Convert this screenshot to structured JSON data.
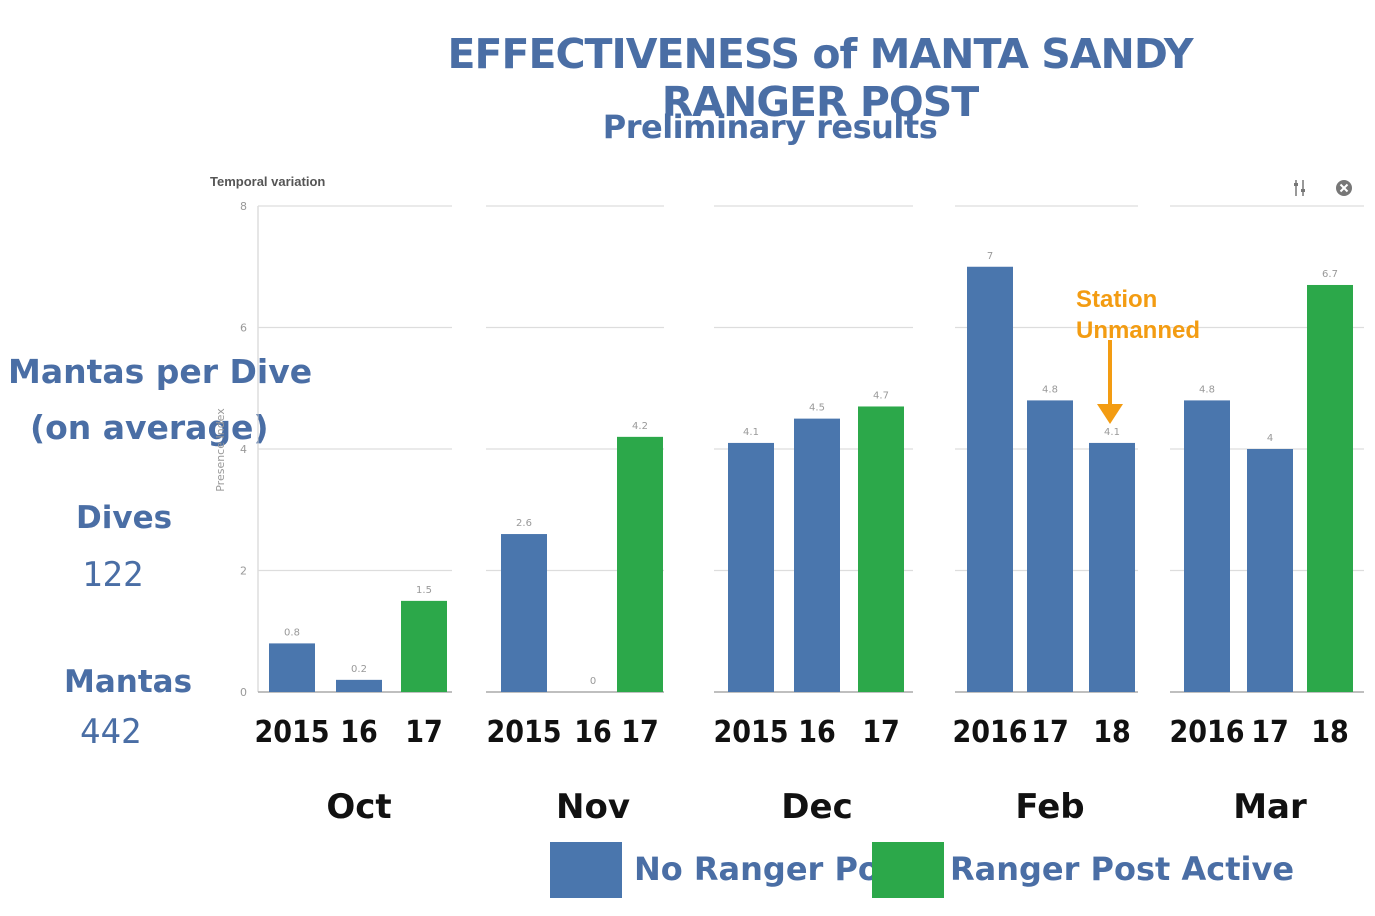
{
  "title": "EFFECTIVENESS of MANTA SANDY RANGER POST",
  "subtitle": "Preliminary results",
  "panel_label": "Temporal variation",
  "y_axis_label": "Presence Index",
  "side": {
    "heading_line1": "Mantas per Dive",
    "heading_line2": "(on average)",
    "dives_label": "Dives",
    "dives_value": "122",
    "mantas_label": "Mantas",
    "mantas_value": "442"
  },
  "annotation": {
    "line1": "Station",
    "line2": "Unmanned"
  },
  "toolbar": {
    "settings_icon": "sliders-icon",
    "close_icon": "close-icon"
  },
  "legend": [
    {
      "label": "No Ranger Post",
      "color": "#4a76ad"
    },
    {
      "label": "Ranger Post Active",
      "color": "#2ca84a"
    }
  ],
  "colors": {
    "no_ranger": "#4a76ad",
    "ranger_active": "#2ca84a",
    "annotation": "#f39c12"
  },
  "chart_data": {
    "type": "bar",
    "ylabel": "Presence Index",
    "ylim": [
      0,
      8
    ],
    "yticks": [
      0,
      2,
      4,
      6,
      8
    ],
    "grid": true,
    "groups": [
      {
        "month": "Oct",
        "bars": [
          {
            "year": "2015",
            "value": 0.8,
            "label": "0.8",
            "ranger": false
          },
          {
            "year": "16",
            "value": 0.2,
            "label": "0.2",
            "ranger": false
          },
          {
            "year": "17",
            "value": 1.5,
            "label": "1.5",
            "ranger": true
          }
        ]
      },
      {
        "month": "Nov",
        "bars": [
          {
            "year": "2015",
            "value": 2.6,
            "label": "2.6",
            "ranger": false
          },
          {
            "year": "16",
            "value": 0,
            "label": "0",
            "ranger": false
          },
          {
            "year": "17",
            "value": 4.2,
            "label": "4.2",
            "ranger": true
          }
        ]
      },
      {
        "month": "Dec",
        "bars": [
          {
            "year": "2015",
            "value": 4.1,
            "label": "4.1",
            "ranger": false
          },
          {
            "year": "16",
            "value": 4.5,
            "label": "4.5",
            "ranger": false
          },
          {
            "year": "17",
            "value": 4.7,
            "label": "4.7",
            "ranger": true
          }
        ]
      },
      {
        "month": "Feb",
        "bars": [
          {
            "year": "2016",
            "value": 7,
            "label": "7",
            "ranger": false
          },
          {
            "year": "17",
            "value": 4.8,
            "label": "4.8",
            "ranger": false
          },
          {
            "year": "18",
            "value": 4.1,
            "label": "4.1",
            "ranger": false
          }
        ]
      },
      {
        "month": "Mar",
        "bars": [
          {
            "year": "2016",
            "value": 4.8,
            "label": "4.8",
            "ranger": false
          },
          {
            "year": "17",
            "value": 4,
            "label": "4",
            "ranger": false
          },
          {
            "year": "18",
            "value": 6.7,
            "label": "6.7",
            "ranger": true
          }
        ]
      }
    ]
  }
}
